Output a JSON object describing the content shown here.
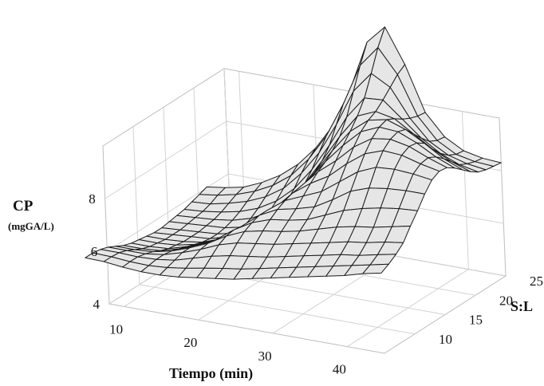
{
  "chart_data": {
    "type": "surface",
    "title": "",
    "xlabel": "Tiempo (min)",
    "ylabel": "S:L",
    "zlabel": "CP",
    "zlabel_unit": "(mgGA/L)",
    "xlim": [
      8,
      45
    ],
    "ylim": [
      5,
      25
    ],
    "zlim": [
      4,
      10
    ],
    "x_ticks": [
      10,
      20,
      30,
      40
    ],
    "y_ticks": [
      10,
      15,
      20,
      25
    ],
    "z_ticks": [
      4,
      6,
      8
    ],
    "grid": true,
    "x": [
      5,
      7.5,
      10,
      12.5,
      15,
      17.5,
      20,
      22.5,
      25,
      27.5,
      30,
      32.5,
      35,
      37.5,
      40,
      42.5,
      45
    ],
    "y": [
      5,
      6.25,
      7.5,
      8.75,
      10,
      11.25,
      12.5,
      13.75,
      15,
      16.25,
      17.5,
      18.75,
      20,
      21.25,
      22.5,
      23.75,
      25
    ],
    "z": [
      [
        5.6,
        5.58,
        5.5,
        5.45,
        5.45,
        5.5,
        5.6,
        5.7,
        5.8,
        5.95,
        6.1,
        6.25,
        6.4,
        6.55,
        6.7,
        6.9,
        7.05
      ],
      [
        5.6,
        5.58,
        5.52,
        5.5,
        5.55,
        5.65,
        5.78,
        5.9,
        6.0,
        6.15,
        6.3,
        6.45,
        6.6,
        6.75,
        6.9,
        7.05,
        7.2
      ],
      [
        5.55,
        5.55,
        5.52,
        5.55,
        5.65,
        5.85,
        6.05,
        6.2,
        6.3,
        6.4,
        6.55,
        6.7,
        6.85,
        7.0,
        7.1,
        7.25,
        7.4
      ],
      [
        5.45,
        5.45,
        5.45,
        5.55,
        5.75,
        6.0,
        6.3,
        6.5,
        6.6,
        6.7,
        6.85,
        7.0,
        7.15,
        7.3,
        7.4,
        7.55,
        7.65
      ],
      [
        5.3,
        5.3,
        5.35,
        5.5,
        5.75,
        6.05,
        6.45,
        6.75,
        6.9,
        7.0,
        7.15,
        7.35,
        7.55,
        7.7,
        7.8,
        7.95,
        8.1
      ],
      [
        5.15,
        5.15,
        5.2,
        5.4,
        5.65,
        6.0,
        6.5,
        6.9,
        7.15,
        7.25,
        7.4,
        7.7,
        8.0,
        8.2,
        8.35,
        8.45,
        8.5
      ],
      [
        5.05,
        5.05,
        5.1,
        5.3,
        5.55,
        5.9,
        6.45,
        7.0,
        7.35,
        7.5,
        7.7,
        8.1,
        8.55,
        8.8,
        8.9,
        8.95,
        8.95
      ],
      [
        5.0,
        5.0,
        5.05,
        5.2,
        5.45,
        5.8,
        6.35,
        7.0,
        7.5,
        7.8,
        8.1,
        8.6,
        9.1,
        9.4,
        9.45,
        9.4,
        9.3
      ],
      [
        4.95,
        4.95,
        5.0,
        5.1,
        5.35,
        5.7,
        6.25,
        6.9,
        7.6,
        8.1,
        8.5,
        9.1,
        9.6,
        9.85,
        9.8,
        9.6,
        9.45
      ],
      [
        4.9,
        4.95,
        5.0,
        5.05,
        5.25,
        5.6,
        6.15,
        6.85,
        7.65,
        8.35,
        8.9,
        9.55,
        10.0,
        10.1,
        9.95,
        9.65,
        9.4
      ],
      [
        4.9,
        4.95,
        5.0,
        5.05,
        5.2,
        5.55,
        6.05,
        6.8,
        7.7,
        8.55,
        9.3,
        9.95,
        10.25,
        10.2,
        9.9,
        9.5,
        9.2
      ],
      [
        4.95,
        5.0,
        5.05,
        5.1,
        5.25,
        5.6,
        6.1,
        6.9,
        7.85,
        8.8,
        9.65,
        10.2,
        10.35,
        10.1,
        9.7,
        9.25,
        8.95
      ],
      [
        5.0,
        5.05,
        5.1,
        5.2,
        5.4,
        5.75,
        6.3,
        7.1,
        8.1,
        9.15,
        10.05,
        10.35,
        10.2,
        9.75,
        9.3,
        8.95,
        8.7
      ],
      [
        5.05,
        5.1,
        5.2,
        5.35,
        5.6,
        6.0,
        6.6,
        7.45,
        8.5,
        9.7,
        10.55,
        10.6,
        10.0,
        9.4,
        8.95,
        8.65,
        8.5
      ],
      [
        5.15,
        5.2,
        5.35,
        5.55,
        5.85,
        6.3,
        7.0,
        7.9,
        9.1,
        10.5,
        11.3,
        10.9,
        9.85,
        9.1,
        8.7,
        8.5,
        8.4
      ],
      [
        5.25,
        5.35,
        5.5,
        5.75,
        6.1,
        6.6,
        7.35,
        8.35,
        9.7,
        11.3,
        12.1,
        11.2,
        9.75,
        8.95,
        8.55,
        8.4,
        8.35
      ],
      [
        5.35,
        5.45,
        5.6,
        5.9,
        6.3,
        6.85,
        7.6,
        8.6,
        10.1,
        12.0,
        12.7,
        11.4,
        9.7,
        8.9,
        8.5,
        8.35,
        8.3
      ]
    ]
  }
}
